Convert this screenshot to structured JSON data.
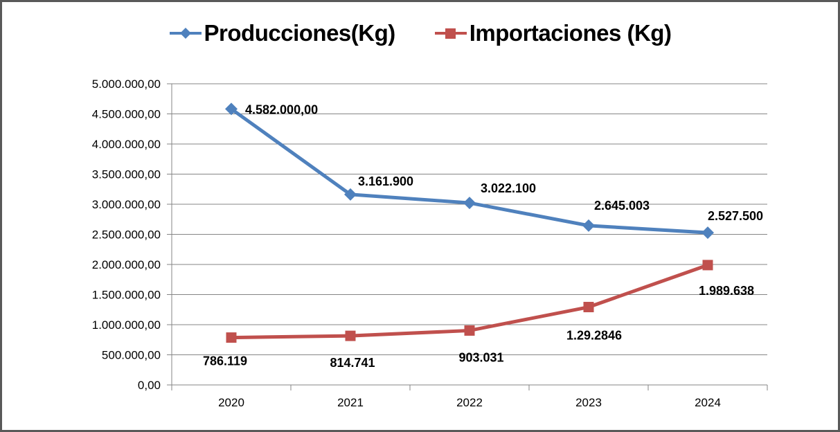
{
  "chart_data": {
    "type": "line",
    "categories": [
      "2020",
      "2021",
      "2022",
      "2023",
      "2024"
    ],
    "series": [
      {
        "name": "Producciones(Kg)",
        "values": [
          4582000,
          3161900,
          3022100,
          2645003,
          2527500
        ],
        "labels": [
          "4.582.000,00",
          "3.161.900",
          "3.022.100",
          "2.645.003",
          "2.527.500"
        ],
        "color": "#4F81BD",
        "marker": "diamond",
        "label_offsets": [
          [
            20,
            7,
            "start"
          ],
          [
            51,
            -13,
            "middle"
          ],
          [
            56,
            -15,
            "middle"
          ],
          [
            48,
            -23,
            "middle"
          ],
          [
            40,
            -18,
            "middle"
          ]
        ]
      },
      {
        "name": "Importaciones (Kg)",
        "values": [
          786119,
          814741,
          903031,
          1292846,
          1989638
        ],
        "labels": [
          "786.119",
          "814.741",
          "903.031",
          "1.29.2846",
          "1.989.638"
        ],
        "color": "#C0504D",
        "marker": "square",
        "label_offsets": [
          [
            -9,
            40,
            "middle"
          ],
          [
            3,
            45,
            "middle"
          ],
          [
            17,
            45,
            "middle"
          ],
          [
            8,
            47,
            "middle"
          ],
          [
            27,
            43,
            "middle"
          ]
        ]
      }
    ],
    "y_axis": {
      "min": 0,
      "max": 5000000,
      "step": 500000,
      "ticks_top_to_bottom": [
        "5.000.000,00",
        "4.500.000,00",
        "4.000.000,00",
        "3.500.000,00",
        "3.000.000,00",
        "2.500.000,00",
        "2.000.000,00",
        "1.500.000,00",
        "1.000.000,00",
        "500.000,00",
        "0,00"
      ]
    },
    "title": "",
    "xlabel": "",
    "ylabel": "",
    "grid": true,
    "legend_position": "top-center",
    "colors": {
      "gridline": "#848484",
      "axis": "#848484",
      "text": "#000000"
    }
  }
}
